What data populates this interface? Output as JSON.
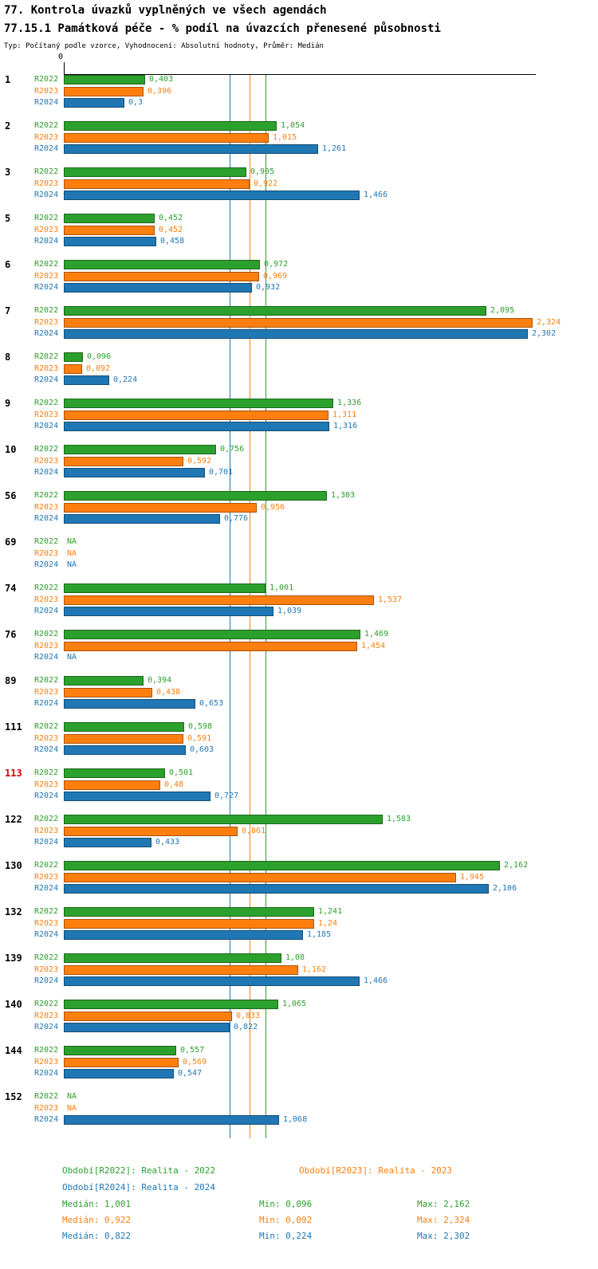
{
  "chart_data": {
    "type": "bar",
    "orientation": "horizontal",
    "title": "77. Kontrola úvazků vyplněných ve všech agendách",
    "subtitle": "77.15.1 Památková péče - % podíl na úvazcích přenesené působnosti",
    "note": "Typ: Počítaný podle vzorce, Vyhodnocení: Absolutní hodnoty, Průměr: Medián",
    "x_axis": {
      "zero_label": "0",
      "min": 0,
      "implied_max": 2.35,
      "gridlines": false
    },
    "legend_position": "bottom",
    "series": [
      {
        "name": "R2022",
        "legend": "Období[R2022]: Realita - 2022",
        "color": "#2ca02c",
        "median": 1.001,
        "median_label": "Medián: 1,001",
        "min_label": "Min: 0,096",
        "max_label": "Max: 2,162"
      },
      {
        "name": "R2023",
        "legend": "Období[R2023]: Realita - 2023",
        "color": "#ff7f0e",
        "median": 0.922,
        "median_label": "Medián: 0,922",
        "min_label": "Min: 0,092",
        "max_label": "Max: 2,324"
      },
      {
        "name": "R2024",
        "legend": "Období[R2024]: Realita - 2024",
        "color": "#1f77b4",
        "median": 0.822,
        "median_label": "Medián: 0,822",
        "min_label": "Min: 0,224",
        "max_label": "Max: 2,302"
      }
    ],
    "groups": [
      {
        "id": "1",
        "values": [
          "0,403",
          "0,396",
          "0,3"
        ]
      },
      {
        "id": "2",
        "values": [
          "1,054",
          "1,015",
          "1,261"
        ]
      },
      {
        "id": "3",
        "values": [
          "0,905",
          "0,922",
          "1,466"
        ]
      },
      {
        "id": "5",
        "values": [
          "0,452",
          "0,452",
          "0,458"
        ]
      },
      {
        "id": "6",
        "values": [
          "0,972",
          "0,969",
          "0,932"
        ]
      },
      {
        "id": "7",
        "values": [
          "2,095",
          "2,324",
          "2,302"
        ]
      },
      {
        "id": "8",
        "values": [
          "0,096",
          "0,092",
          "0,224"
        ]
      },
      {
        "id": "9",
        "values": [
          "1,336",
          "1,311",
          "1,316"
        ]
      },
      {
        "id": "10",
        "values": [
          "0,756",
          "0,592",
          "0,701"
        ]
      },
      {
        "id": "56",
        "values": [
          "1,303",
          "0,956",
          "0,776"
        ]
      },
      {
        "id": "69",
        "values": [
          "NA",
          "NA",
          "NA"
        ]
      },
      {
        "id": "74",
        "values": [
          "1,001",
          "1,537",
          "1,039"
        ]
      },
      {
        "id": "76",
        "values": [
          "1,469",
          "1,454",
          "NA"
        ]
      },
      {
        "id": "89",
        "values": [
          "0,394",
          "0,438",
          "0,653"
        ]
      },
      {
        "id": "111",
        "values": [
          "0,598",
          "0,591",
          "0,603"
        ]
      },
      {
        "id": "113",
        "highlight": true,
        "values": [
          "0,501",
          "0,48",
          "0,727"
        ]
      },
      {
        "id": "122",
        "values": [
          "1,583",
          "0,861",
          "0,433"
        ]
      },
      {
        "id": "130",
        "values": [
          "2,162",
          "1,945",
          "2,106"
        ]
      },
      {
        "id": "132",
        "values": [
          "1,241",
          "1,24",
          "1,185"
        ]
      },
      {
        "id": "139",
        "values": [
          "1,08",
          "1,162",
          "1,466"
        ]
      },
      {
        "id": "140",
        "values": [
          "1,065",
          "0,833",
          "0,822"
        ]
      },
      {
        "id": "144",
        "values": [
          "0,557",
          "0,569",
          "0,547"
        ]
      },
      {
        "id": "152",
        "values": [
          "NA",
          "NA",
          "1,068"
        ]
      }
    ]
  },
  "colors": {
    "axis": "#000000",
    "highlight_group": "#d40000",
    "r2022": "#2ca02c",
    "r2023": "#ff7f0e",
    "r2024": "#1f77b4"
  }
}
